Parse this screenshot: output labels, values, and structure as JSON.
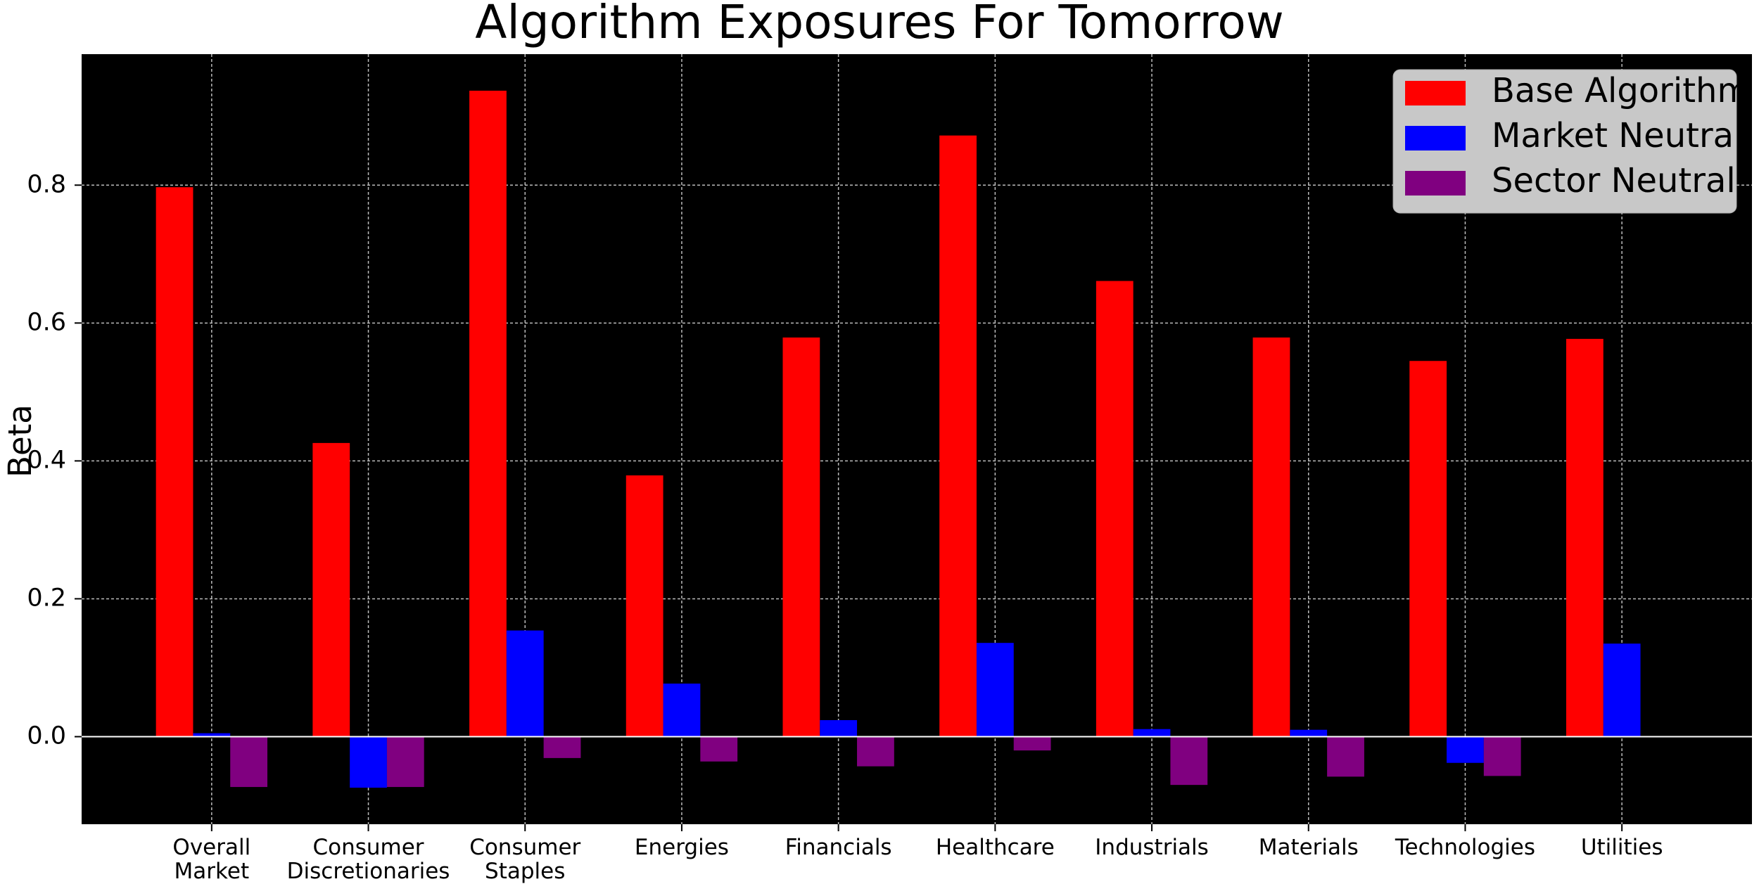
{
  "chart_data": {
    "type": "bar",
    "title": "Algorithm Exposures For Tomorrow",
    "y_label": "Beta",
    "categories": [
      "Overall\nMarket",
      "Consumer\nDiscretionaries",
      "Consumer\nStaples",
      "Energies",
      "Financials",
      "Healthcare",
      "Industrials",
      "Materials",
      "Technologies",
      "Utilities"
    ],
    "series": [
      {
        "name": "Base Algorithm",
        "color": "#ff0000",
        "values": [
          0.797,
          0.426,
          0.937,
          0.379,
          0.579,
          0.872,
          0.661,
          0.579,
          0.545,
          0.577
        ]
      },
      {
        "name": "Market Neutral",
        "color": "#0000ff",
        "values": [
          0.005,
          -0.074,
          0.154,
          0.077,
          0.024,
          0.136,
          0.011,
          0.01,
          -0.038,
          0.135
        ]
      },
      {
        "name": "Sector Neutral",
        "color": "#800080",
        "values": [
          -0.073,
          -0.073,
          -0.031,
          -0.036,
          -0.043,
          -0.02,
          -0.07,
          -0.058,
          -0.057,
          0
        ]
      }
    ],
    "ylim": [
      -0.127,
      0.99
    ],
    "yticks": [
      {
        "value": 0,
        "label": "0.0"
      },
      0.2,
      0.4,
      0.6,
      0.8
    ],
    "grid": true,
    "legend": "upper right",
    "background": "#000000"
  }
}
